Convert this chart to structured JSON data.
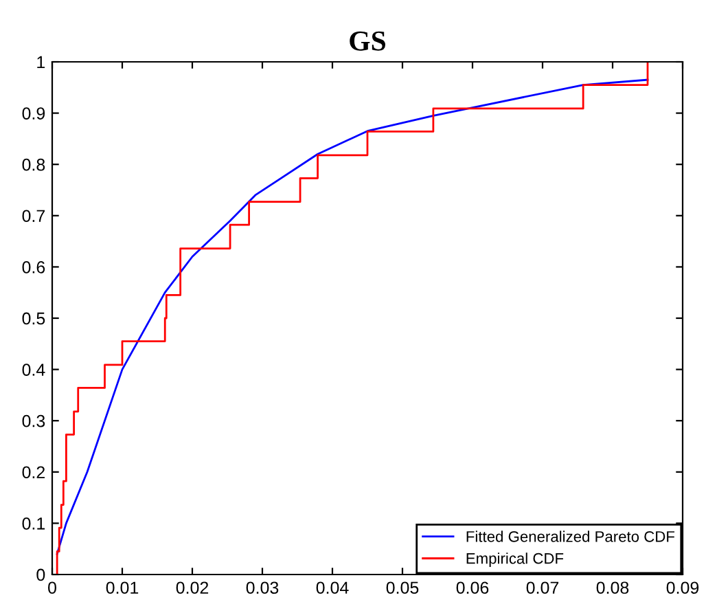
{
  "chart_data": {
    "type": "line",
    "title": "GS",
    "xlim": [
      0,
      0.09
    ],
    "xticks": [
      0,
      0.01,
      0.02,
      0.03,
      0.04,
      0.05,
      0.06,
      0.07,
      0.08,
      0.09
    ],
    "ylim": [
      0,
      1
    ],
    "yticks": [
      0,
      0.1,
      0.2,
      0.3,
      0.4,
      0.5,
      0.6,
      0.7,
      0.8,
      0.9,
      1
    ],
    "grid": false,
    "legend": "bottom right",
    "series": [
      {
        "name": "Fitted Generalized Pareto CDF",
        "color": "#0000ff",
        "x": [
          0.0007,
          0.002,
          0.005,
          0.01,
          0.0161,
          0.02,
          0.0254,
          0.029,
          0.0379,
          0.045,
          0.0544,
          0.0758,
          0.085
        ],
        "values": [
          0.04,
          0.1,
          0.2,
          0.4,
          0.55,
          0.62,
          0.69,
          0.74,
          0.82,
          0.865,
          0.895,
          0.955,
          0.965
        ]
      },
      {
        "name": "Empirical CDF",
        "color": "#ff0000",
        "type": "step",
        "x": [
          0.0007,
          0.0007,
          0.001,
          0.0013,
          0.0016,
          0.002,
          0.0031,
          0.0037,
          0.0075,
          0.01,
          0.0161,
          0.0163,
          0.0183,
          0.0254,
          0.0281,
          0.0354,
          0.0379,
          0.045,
          0.0544,
          0.0758,
          0.085
        ],
        "values": [
          0,
          0.045,
          0.091,
          0.136,
          0.182,
          0.273,
          0.318,
          0.364,
          0.409,
          0.455,
          0.5,
          0.545,
          0.636,
          0.682,
          0.727,
          0.773,
          0.818,
          0.864,
          0.909,
          0.955,
          1
        ]
      }
    ]
  }
}
